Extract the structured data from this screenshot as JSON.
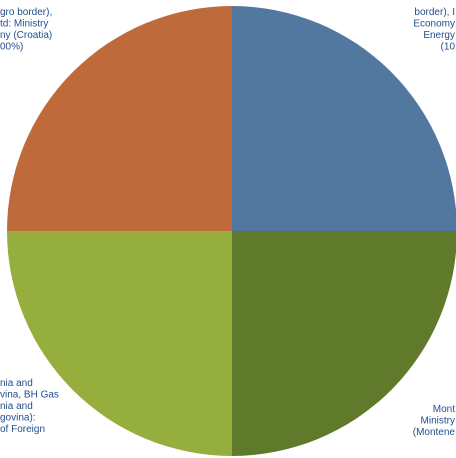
{
  "chart_data": {
    "type": "pie",
    "start_angle": "12 o'clock",
    "direction": "clockwise",
    "slices": [
      {
        "value": 25,
        "color": "#53789f",
        "label_lines": [
          "border), I",
          "Economy",
          "Energy",
          "(10"
        ]
      },
      {
        "value": 25,
        "color": "#5f7a2b",
        "label_lines": [
          "Mont",
          "Ministry",
          "(Montene"
        ]
      },
      {
        "value": 25,
        "color": "#95ae3d",
        "label_lines": [
          "nia and",
          "vina, BH Gas",
          "nia and",
          "govina):",
          "of Foreign"
        ]
      },
      {
        "value": 25,
        "color": "#bf6a3a",
        "label_lines": [
          "gro border),",
          "td: Ministry",
          "ny (Croatia)",
          "00%)"
        ]
      }
    ]
  }
}
